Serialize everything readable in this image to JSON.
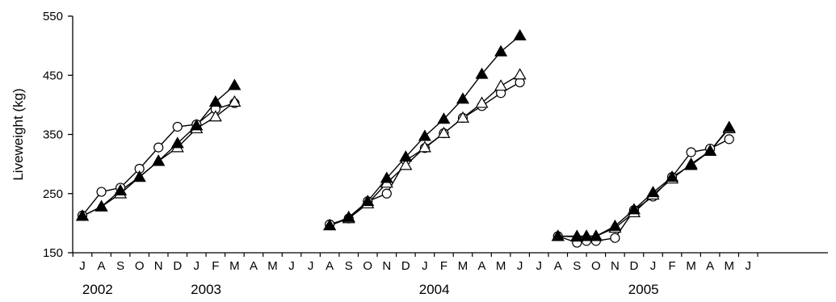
{
  "chart_data": {
    "type": "line",
    "ylabel": "Liveweight (kg)",
    "xlabel": "",
    "ylim": [
      150,
      550
    ],
    "yticks": [
      150,
      250,
      350,
      450,
      550
    ],
    "grid": false,
    "legend": "none",
    "month_labels": [
      "J",
      "A",
      "S",
      "O",
      "N",
      "D",
      "J",
      "F",
      "M",
      "A",
      "M",
      "J",
      "J",
      "A",
      "S",
      "O",
      "N",
      "D",
      "J",
      "F",
      "M",
      "A",
      "M",
      "J",
      "J",
      "A",
      "S",
      "O",
      "N",
      "D",
      "J",
      "F",
      "M",
      "A",
      "M",
      "J"
    ],
    "month_range": [
      0,
      35
    ],
    "year_labels": [
      {
        "label": "2002",
        "month": 0.8
      },
      {
        "label": "2003",
        "month": 6.5
      },
      {
        "label": "2004",
        "month": 18.5
      },
      {
        "label": "2005",
        "month": 29.5
      }
    ],
    "series": [
      {
        "marker": "open-circle",
        "segments": [
          [
            [
              0,
              213
            ],
            [
              1,
              253
            ],
            [
              2,
              260
            ],
            [
              3,
              292
            ],
            [
              4,
              328
            ],
            [
              5,
              363
            ],
            [
              6,
              367
            ],
            [
              7,
              393
            ],
            [
              8,
              403
            ]
          ],
          [
            [
              13,
              198
            ],
            [
              14,
              208
            ],
            [
              15,
              237
            ],
            [
              16,
              250
            ],
            [
              17,
              306
            ],
            [
              18,
              327
            ],
            [
              19,
              352
            ],
            [
              20,
              378
            ],
            [
              21,
              398
            ],
            [
              22,
              420
            ],
            [
              23,
              438
            ]
          ],
          [
            [
              25,
              178
            ],
            [
              26,
              167
            ],
            [
              26.5,
              170
            ],
            [
              27,
              170
            ],
            [
              28,
              175
            ],
            [
              29,
              222
            ],
            [
              30,
              245
            ],
            [
              31,
              278
            ],
            [
              32,
              320
            ],
            [
              33,
              326
            ],
            [
              34,
              342
            ]
          ]
        ]
      },
      {
        "marker": "open-triangle",
        "segments": [
          [
            [
              0,
              212
            ],
            [
              1,
              228
            ],
            [
              2,
              250
            ],
            [
              3,
              278
            ],
            [
              4,
              305
            ],
            [
              5,
              328
            ],
            [
              6,
              360
            ],
            [
              7,
              380
            ],
            [
              8,
              405
            ]
          ],
          [
            [
              13,
              196
            ],
            [
              14,
              208
            ],
            [
              15,
              233
            ],
            [
              16,
              268
            ],
            [
              17,
              298
            ],
            [
              18,
              328
            ],
            [
              19,
              352
            ],
            [
              20,
              378
            ],
            [
              21,
              403
            ],
            [
              22,
              432
            ],
            [
              23,
              451
            ]
          ],
          [
            [
              25,
              178
            ],
            [
              26,
              177
            ],
            [
              26.5,
              178
            ],
            [
              27,
              178
            ],
            [
              28,
              192
            ],
            [
              29,
              218
            ],
            [
              30,
              248
            ],
            [
              31,
              275
            ],
            [
              32,
              300
            ],
            [
              33,
              322
            ],
            [
              34,
              360
            ]
          ]
        ]
      },
      {
        "marker": "filled-triangle",
        "segments": [
          [
            [
              0,
              212
            ],
            [
              1,
              228
            ],
            [
              2,
              255
            ],
            [
              3,
              278
            ],
            [
              4,
              305
            ],
            [
              5,
              335
            ],
            [
              6,
              365
            ],
            [
              7,
              405
            ],
            [
              8,
              433
            ]
          ],
          [
            [
              13,
              196
            ],
            [
              14,
              210
            ],
            [
              15,
              237
            ],
            [
              16,
              276
            ],
            [
              17,
              312
            ],
            [
              18,
              347
            ],
            [
              19,
              376
            ],
            [
              20,
              410
            ],
            [
              21,
              452
            ],
            [
              22,
              490
            ],
            [
              23,
              517
            ]
          ],
          [
            [
              25,
              178
            ],
            [
              26,
              178
            ],
            [
              26.5,
              178
            ],
            [
              27,
              178
            ],
            [
              28,
              195
            ],
            [
              29,
              223
            ],
            [
              30,
              252
            ],
            [
              31,
              278
            ],
            [
              32,
              298
            ],
            [
              33,
              322
            ],
            [
              34,
              362
            ]
          ]
        ]
      }
    ]
  }
}
